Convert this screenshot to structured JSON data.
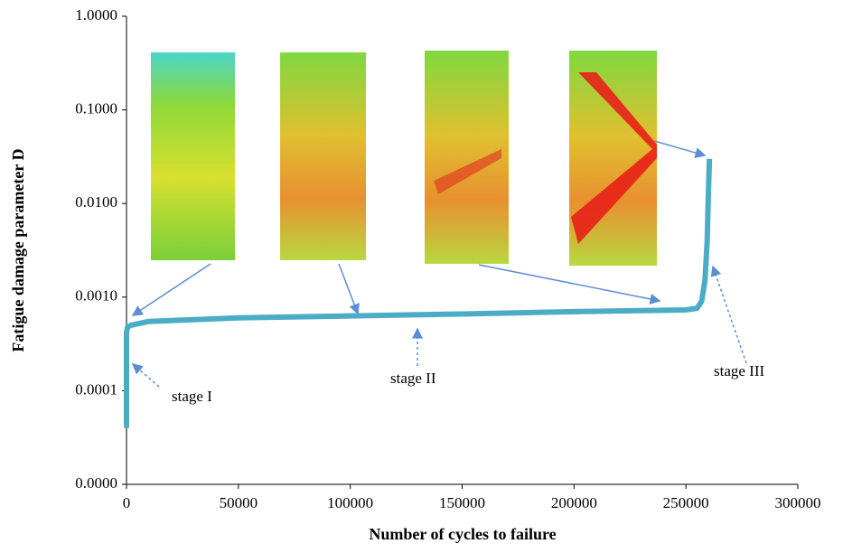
{
  "chart_data": {
    "type": "line",
    "x_label": "Number of cycles to failure",
    "y_label": "Fatigue damage parameter D",
    "x": [
      0,
      0,
      0,
      0,
      500,
      2000,
      10000,
      50000,
      100000,
      150000,
      200000,
      250000,
      255000,
      257000,
      258500,
      259500,
      260000,
      260500
    ],
    "series": [
      {
        "color": "#4bacc6",
        "values": [
          4e-05,
          0.0001,
          0.0003,
          0.00042,
          0.00048,
          0.0005,
          0.00055,
          0.0006,
          0.00063,
          0.00066,
          0.0007,
          0.00073,
          0.00076,
          0.0009,
          0.0015,
          0.004,
          0.012,
          0.03
        ]
      }
    ],
    "xlim": [
      0,
      300000
    ],
    "xticks": [
      0,
      50000,
      100000,
      150000,
      200000,
      250000,
      300000
    ],
    "ylim": [
      1e-05,
      1
    ],
    "log_y": true,
    "yticks": [
      {
        "value": 1e-05,
        "label": "0.0000"
      },
      0.0001,
      {
        "value": 0.001,
        "label": "0.0010"
      },
      {
        "value": 0.01,
        "label": "0.0100"
      },
      {
        "value": 0.1,
        "label": "0.1000"
      },
      {
        "value": 1,
        "label": "1.0000"
      }
    ],
    "grid": false,
    "annotations": [
      "stage I",
      "stage II",
      "stage III"
    ]
  }
}
